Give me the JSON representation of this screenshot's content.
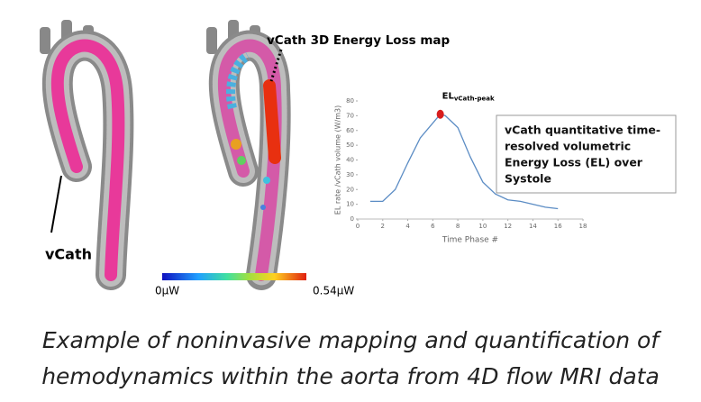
{
  "chart_data": {
    "type": "line",
    "xlabel": "Time Phase #",
    "ylabel": "EL rate /vCath volume (W/m3)",
    "x": [
      1,
      2,
      3,
      4,
      5,
      6,
      6.6,
      7,
      8,
      9,
      10,
      11,
      12,
      13,
      14,
      15,
      16
    ],
    "series": [
      {
        "color": "#5b8cc4",
        "values": [
          12,
          12,
          20,
          38,
          55,
          65,
          71,
          70,
          62,
          42,
          25,
          17,
          13,
          12,
          10,
          8,
          7
        ]
      }
    ],
    "xlim": [
      0,
      18
    ],
    "xticks": [
      0,
      2,
      4,
      6,
      8,
      10,
      12,
      14,
      16,
      18
    ],
    "ylim": [
      0,
      80
    ],
    "yticks": [
      0,
      10,
      20,
      30,
      40,
      50,
      60,
      70,
      80
    ],
    "peak": {
      "x": 6.6,
      "y": 71,
      "color": "#d81e1e",
      "label": "EL",
      "label_sub": "vCath-peak"
    },
    "note": [
      "vCath quantitative time-",
      "resolved volumetric",
      "Energy Loss (EL) over",
      "Systole"
    ]
  },
  "map_title": "vCath 3D Energy Loss map",
  "vcath_label": "vCath",
  "colorbar": {
    "min_label": "0μW",
    "max_label": "0.54μW"
  },
  "caption": [
    "Example of noninvasive mapping and quantification of",
    "hemodynamics within the aorta from 4D flow MRI data"
  ]
}
